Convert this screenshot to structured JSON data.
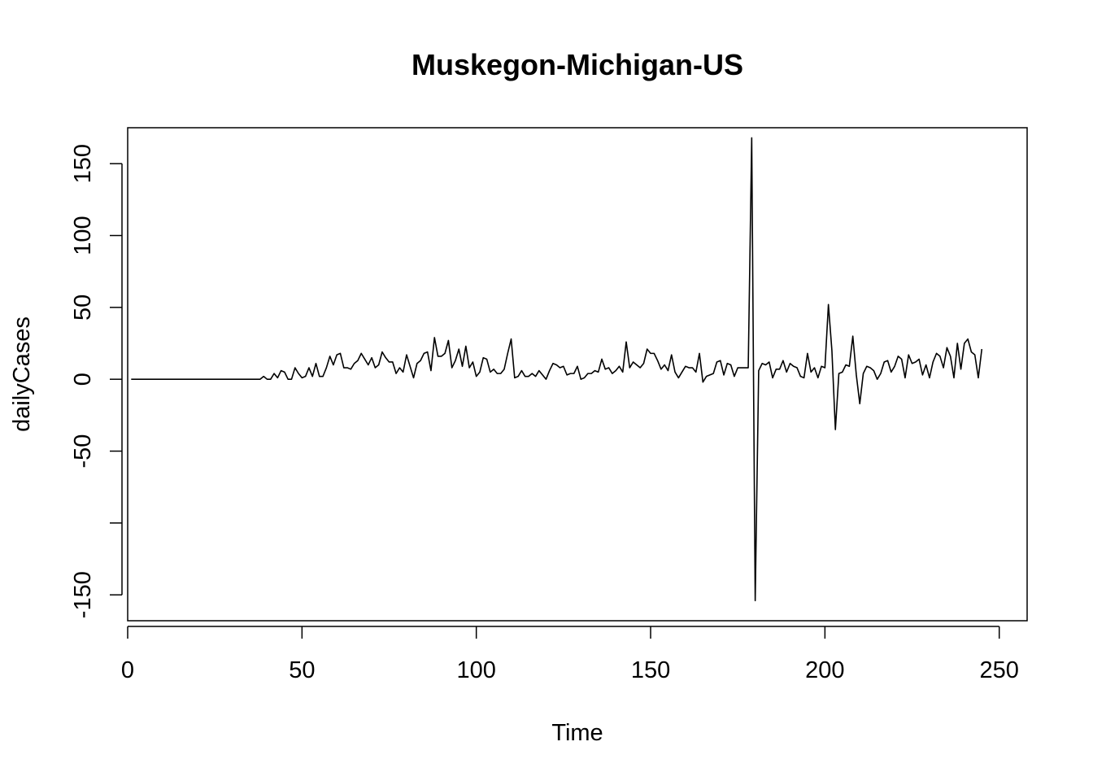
{
  "chart_data": {
    "type": "line",
    "title": "Muskegon-Michigan-US",
    "xlabel": "Time",
    "ylabel": "dailyCases",
    "xlim": [
      0,
      258
    ],
    "ylim": [
      -168,
      175
    ],
    "x_ticks": [
      {
        "value": 0,
        "label": "0"
      },
      {
        "value": 50,
        "label": "50"
      },
      {
        "value": 100,
        "label": "100"
      },
      {
        "value": 150,
        "label": "150"
      },
      {
        "value": 200,
        "label": "200"
      },
      {
        "value": 250,
        "label": "250"
      }
    ],
    "y_ticks": [
      {
        "value": 150,
        "label": "150"
      },
      {
        "value": 100,
        "label": "100"
      },
      {
        "value": 50,
        "label": "50"
      },
      {
        "value": 0,
        "label": "0"
      },
      {
        "value": -50,
        "label": "-50"
      },
      {
        "value": -100,
        "label": ""
      },
      {
        "value": -150,
        "label": "-150"
      }
    ],
    "grid": false,
    "legend": "none",
    "line_color": "#000000",
    "series": [
      {
        "x_start": 1,
        "values": [
          0,
          0,
          0,
          0,
          0,
          0,
          0,
          0,
          0,
          0,
          0,
          0,
          0,
          0,
          0,
          0,
          0,
          0,
          0,
          0,
          0,
          0,
          0,
          0,
          0,
          0,
          0,
          0,
          0,
          0,
          0,
          0,
          0,
          0,
          0,
          0,
          0,
          0,
          2,
          0,
          0,
          4,
          1,
          6,
          5,
          0,
          0,
          8,
          4,
          1,
          2,
          8,
          2,
          11,
          2,
          2,
          8,
          16,
          10,
          17,
          18,
          8,
          8,
          7,
          11,
          13,
          18,
          14,
          10,
          15,
          8,
          10,
          19,
          15,
          12,
          12,
          4,
          8,
          5,
          17,
          9,
          1,
          11,
          13,
          18,
          19,
          6,
          29,
          16,
          16,
          18,
          27,
          8,
          13,
          21,
          9,
          23,
          8,
          12,
          2,
          5,
          15,
          14,
          5,
          7,
          4,
          4,
          7,
          18,
          28,
          1,
          2,
          6,
          2,
          2,
          4,
          2,
          6,
          3,
          0,
          6,
          11,
          10,
          8,
          9,
          3,
          4,
          4,
          9,
          0,
          1,
          4,
          4,
          6,
          5,
          14,
          7,
          8,
          4,
          6,
          9,
          5,
          26,
          8,
          12,
          10,
          8,
          11,
          21,
          18,
          18,
          13,
          7,
          10,
          6,
          17,
          5,
          1,
          5,
          9,
          8,
          8,
          5,
          18,
          -2,
          2,
          3,
          4,
          12,
          13,
          3,
          11,
          10,
          2,
          8,
          8,
          8,
          8,
          168,
          -154,
          6,
          11,
          10,
          12,
          1,
          7,
          7,
          13,
          5,
          11,
          9,
          8,
          2,
          1,
          18,
          5,
          8,
          1,
          9,
          8,
          52,
          20,
          -35,
          4,
          5,
          10,
          9,
          30,
          3,
          -17,
          4,
          9,
          8,
          6,
          0,
          4,
          12,
          13,
          5,
          9,
          16,
          14,
          1,
          17,
          11,
          12,
          14,
          3,
          10,
          1,
          12,
          18,
          16,
          8,
          22,
          16,
          1,
          25,
          7,
          25,
          28,
          19,
          17,
          1,
          21
        ]
      }
    ]
  }
}
